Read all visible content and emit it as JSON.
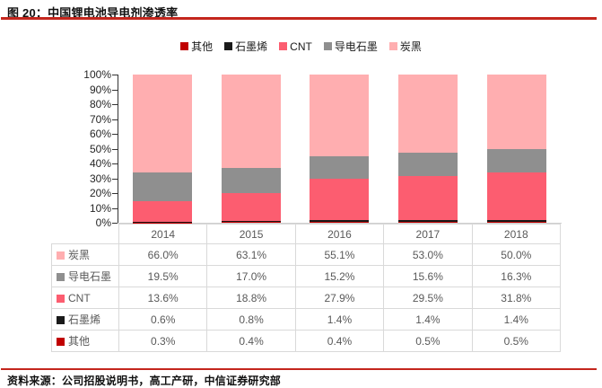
{
  "title": "图 20：中国锂电池导电剂渗透率",
  "source": "资料来源：公司招股说明书，高工产研，中信证券研究部",
  "colors": {
    "accent_red": "#c4261d",
    "axis": "#333333",
    "table_border": "#d9d9d9",
    "table_text": "#595959"
  },
  "legend": [
    {
      "label": "其他",
      "color": "#c00000"
    },
    {
      "label": "石墨烯",
      "color": "#1a1a1a"
    },
    {
      "label": "CNT",
      "color": "#fc5d70"
    },
    {
      "label": "导电石墨",
      "color": "#8f8f8f"
    },
    {
      "label": "炭黑",
      "color": "#ffaeb0"
    }
  ],
  "chart_data": {
    "type": "bar",
    "subtype": "stacked-100-percent-column",
    "title": "中国锂电池导电剂渗透率",
    "categories": [
      "2014",
      "2015",
      "2016",
      "2017",
      "2018"
    ],
    "series": [
      {
        "name": "其他",
        "color": "#c00000",
        "values": [
          0.3,
          0.4,
          0.4,
          0.5,
          0.5
        ]
      },
      {
        "name": "石墨烯",
        "color": "#1a1a1a",
        "values": [
          0.6,
          0.8,
          1.4,
          1.4,
          1.4
        ]
      },
      {
        "name": "CNT",
        "color": "#fc5d70",
        "values": [
          13.6,
          18.8,
          27.9,
          29.5,
          31.8
        ]
      },
      {
        "name": "导电石墨",
        "color": "#8f8f8f",
        "values": [
          19.5,
          17.0,
          15.2,
          15.6,
          16.3
        ]
      },
      {
        "name": "炭黑",
        "color": "#ffaeb0",
        "values": [
          66.0,
          63.1,
          55.1,
          53.0,
          50.0
        ]
      }
    ],
    "stack_order_bottom_to_top": [
      "其他",
      "石墨烯",
      "CNT",
      "导电石墨",
      "炭黑"
    ],
    "ylim": [
      0,
      100
    ],
    "y_tick_step": 10,
    "y_tick_labels": [
      "0%",
      "10%",
      "20%",
      "30%",
      "40%",
      "50%",
      "60%",
      "70%",
      "80%",
      "90%",
      "100%"
    ],
    "grid": false,
    "legend_position": "top"
  },
  "table": {
    "header": [
      "",
      "2014",
      "2015",
      "2016",
      "2017",
      "2018"
    ],
    "rows": [
      {
        "label": "炭黑",
        "marker_color": "#ffaeb0",
        "values": [
          "66.0%",
          "63.1%",
          "55.1%",
          "53.0%",
          "50.0%"
        ]
      },
      {
        "label": "导电石墨",
        "marker_color": "#8f8f8f",
        "values": [
          "19.5%",
          "17.0%",
          "15.2%",
          "15.6%",
          "16.3%"
        ]
      },
      {
        "label": "CNT",
        "marker_color": "#fc5d70",
        "values": [
          "13.6%",
          "18.8%",
          "27.9%",
          "29.5%",
          "31.8%"
        ]
      },
      {
        "label": "石墨烯",
        "marker_color": "#1a1a1a",
        "values": [
          "0.6%",
          "0.8%",
          "1.4%",
          "1.4%",
          "1.4%"
        ]
      },
      {
        "label": "其他",
        "marker_color": "#c00000",
        "values": [
          "0.3%",
          "0.4%",
          "0.4%",
          "0.5%",
          "0.5%"
        ]
      }
    ]
  }
}
